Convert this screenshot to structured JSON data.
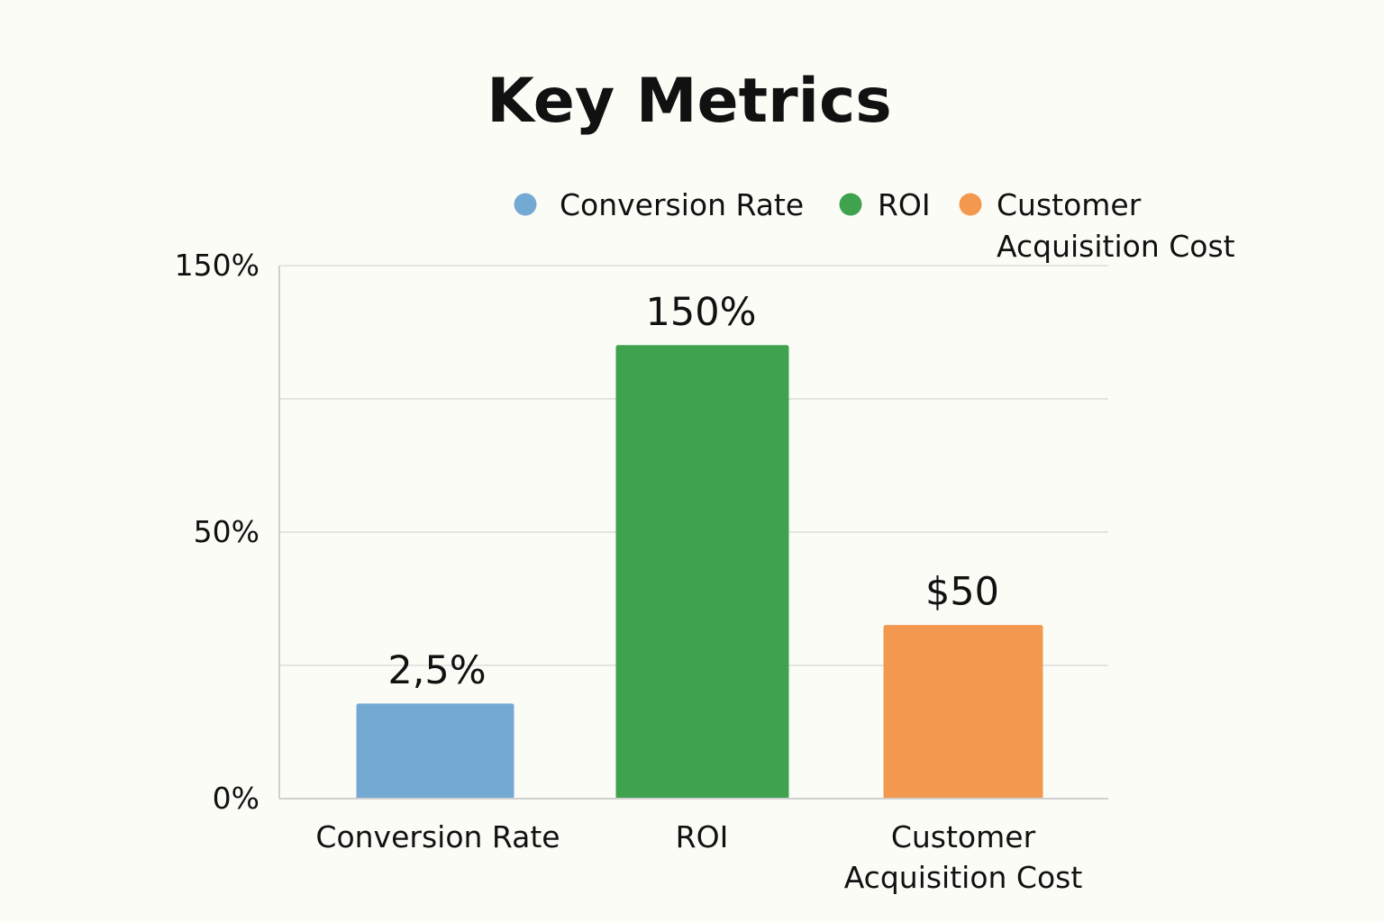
{
  "chart_data": {
    "type": "bar",
    "title": "Key Metrics",
    "categories": [
      "Conversion Rate",
      "ROI",
      "Customer Acquisition Cost"
    ],
    "category_label_lines": [
      [
        "Conversion Rate"
      ],
      [
        "ROI"
      ],
      [
        "Customer",
        "Acquisition Cost"
      ]
    ],
    "values": [
      2.5,
      150,
      50
    ],
    "value_labels": [
      "2,5%",
      "150%",
      "$50"
    ],
    "colors": [
      "#74a9d4",
      "#3fa24e",
      "#f2994f"
    ],
    "legend": {
      "placement": "top-right",
      "entries": [
        {
          "name": "Conversion Rate",
          "lines": [
            "Conversion Rate"
          ],
          "color": "#74a9d4"
        },
        {
          "name": "ROI",
          "lines": [
            "ROI"
          ],
          "color": "#3fa24e"
        },
        {
          "name": "Customer Acquisition Cost",
          "lines": [
            "Customer",
            "Acquisition Cost"
          ],
          "color": "#f2994f"
        }
      ]
    },
    "y_ticks": [
      {
        "label": "150%",
        "grid_level": 4
      },
      {
        "label": "50%",
        "grid_level": 2
      },
      {
        "label": "0%",
        "grid_level": 0
      }
    ],
    "bar_levels": [
      0.71,
      3.4,
      1.3
    ],
    "grid_levels": [
      1,
      2,
      3,
      4
    ],
    "grid": true,
    "xlabel": "",
    "ylabel": ""
  }
}
